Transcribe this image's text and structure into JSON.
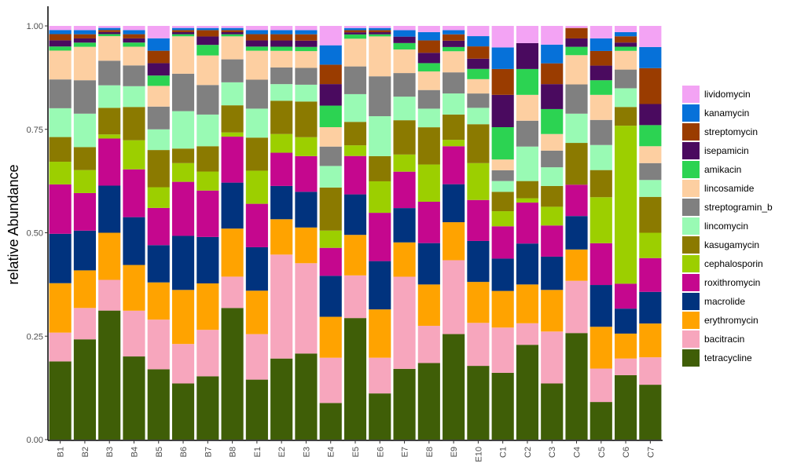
{
  "chart_data": {
    "type": "bar",
    "stacked": true,
    "ylabel": "relative Abundance",
    "xlabel": "",
    "ylim": [
      0,
      1
    ],
    "yticks": [
      "0.00",
      "0.25",
      "0.50",
      "0.75",
      "1.00"
    ],
    "legend_position": "right",
    "categories": [
      "B1",
      "B2",
      "B3",
      "B4",
      "B5",
      "B6",
      "B7",
      "B8",
      "E1",
      "E2",
      "E3",
      "E4",
      "E5",
      "E6",
      "E7",
      "E8",
      "E9",
      "E10",
      "C1",
      "C2",
      "C3",
      "C4",
      "C5",
      "C6",
      "C7"
    ],
    "series": [
      {
        "name": "tetracycline",
        "color": "#3f5e07",
        "values": [
          0.19,
          0.24,
          0.315,
          0.2,
          0.17,
          0.135,
          0.15,
          0.315,
          0.145,
          0.195,
          0.205,
          0.085,
          0.285,
          0.11,
          0.165,
          0.185,
          0.25,
          0.18,
          0.155,
          0.22,
          0.135,
          0.255,
          0.09,
          0.155,
          0.13
        ]
      },
      {
        "name": "bacitracin",
        "color": "#f7a6bd",
        "values": [
          0.07,
          0.075,
          0.075,
          0.11,
          0.12,
          0.095,
          0.11,
          0.075,
          0.11,
          0.25,
          0.215,
          0.105,
          0.1,
          0.085,
          0.215,
          0.09,
          0.175,
          0.105,
          0.105,
          0.05,
          0.125,
          0.125,
          0.08,
          0.04,
          0.065
        ]
      },
      {
        "name": "erythromycin",
        "color": "#ffa300",
        "values": [
          0.12,
          0.09,
          0.115,
          0.11,
          0.09,
          0.13,
          0.11,
          0.115,
          0.105,
          0.085,
          0.085,
          0.095,
          0.095,
          0.115,
          0.08,
          0.1,
          0.09,
          0.1,
          0.085,
          0.09,
          0.1,
          0.075,
          0.1,
          0.06,
          0.08
        ]
      },
      {
        "name": "macrolide",
        "color": "#01337e",
        "values": [
          0.12,
          0.095,
          0.115,
          0.115,
          0.09,
          0.13,
          0.11,
          0.11,
          0.105,
          0.08,
          0.085,
          0.095,
          0.095,
          0.115,
          0.08,
          0.1,
          0.09,
          0.1,
          0.075,
          0.095,
          0.08,
          0.08,
          0.1,
          0.06,
          0.075
        ]
      },
      {
        "name": "roxithromycin",
        "color": "#c5078e",
        "values": [
          0.12,
          0.09,
          0.115,
          0.115,
          0.09,
          0.13,
          0.11,
          0.11,
          0.105,
          0.08,
          0.085,
          0.065,
          0.09,
          0.115,
          0.085,
          0.1,
          0.09,
          0.1,
          0.075,
          0.095,
          0.075,
          0.075,
          0.1,
          0.06,
          0.08
        ]
      },
      {
        "name": "cephalosporin",
        "color": "#9ccf00",
        "values": [
          0.055,
          0.055,
          0.01,
          0.07,
          0.05,
          0.045,
          0.045,
          0.01,
          0.08,
          0.045,
          0.045,
          0.04,
          0.025,
          0.075,
          0.04,
          0.09,
          0.015,
          0.09,
          0.035,
          0.01,
          0.045,
          0.0,
          0.11,
          0.38,
          0.06
        ]
      },
      {
        "name": "kasugamycin",
        "color": "#8b7a00",
        "values": [
          0.06,
          0.055,
          0.065,
          0.08,
          0.09,
          0.035,
          0.06,
          0.065,
          0.08,
          0.08,
          0.085,
          0.1,
          0.055,
          0.06,
          0.08,
          0.09,
          0.06,
          0.095,
          0.045,
          0.04,
          0.05,
          0.1,
          0.065,
          0.045,
          0.085
        ]
      },
      {
        "name": "lincomycin",
        "color": "#99fab4",
        "values": [
          0.07,
          0.08,
          0.055,
          0.05,
          0.05,
          0.09,
          0.075,
          0.055,
          0.07,
          0.04,
          0.04,
          0.05,
          0.065,
          0.095,
          0.055,
          0.045,
          0.05,
          0.04,
          0.025,
          0.08,
          0.045,
          0.07,
          0.06,
          0.045,
          0.04
        ]
      },
      {
        "name": "streptogramin_b",
        "color": "#808080",
        "values": [
          0.07,
          0.08,
          0.06,
          0.05,
          0.055,
          0.09,
          0.07,
          0.055,
          0.07,
          0.04,
          0.04,
          0.045,
          0.065,
          0.095,
          0.055,
          0.045,
          0.05,
          0.035,
          0.025,
          0.06,
          0.04,
          0.07,
          0.06,
          0.045,
          0.04
        ]
      },
      {
        "name": "lincosamide",
        "color": "#fdcfa1",
        "values": [
          0.07,
          0.08,
          0.06,
          0.045,
          0.05,
          0.09,
          0.07,
          0.055,
          0.07,
          0.04,
          0.04,
          0.045,
          0.065,
          0.095,
          0.055,
          0.045,
          0.05,
          0.035,
          0.025,
          0.06,
          0.04,
          0.07,
          0.06,
          0.045,
          0.04
        ]
      },
      {
        "name": "amikacin",
        "color": "#2cd352",
        "values": [
          0.01,
          0.01,
          0.005,
          0.01,
          0.025,
          0.005,
          0.025,
          0.005,
          0.01,
          0.01,
          0.01,
          0.05,
          0.01,
          0.005,
          0.015,
          0.02,
          0.01,
          0.025,
          0.075,
          0.06,
          0.06,
          0.02,
          0.035,
          0.01,
          0.05
        ]
      },
      {
        "name": "isepamicin",
        "color": "#4a0a5f",
        "values": [
          0.015,
          0.01,
          0.005,
          0.01,
          0.03,
          0.005,
          0.02,
          0.005,
          0.015,
          0.015,
          0.015,
          0.05,
          0.005,
          0.005,
          0.015,
          0.025,
          0.015,
          0.025,
          0.075,
          0.06,
          0.06,
          0.02,
          0.035,
          0.01,
          0.05
        ]
      },
      {
        "name": "streptomycin",
        "color": "#9a3c00",
        "values": [
          0.015,
          0.01,
          0.005,
          0.01,
          0.03,
          0.005,
          0.015,
          0.005,
          0.015,
          0.015,
          0.015,
          0.045,
          0.005,
          0.005,
          0.0,
          0.03,
          0.015,
          0.03,
          0.06,
          0.0,
          0.05,
          0.025,
          0.035,
          0.015,
          0.085
        ]
      },
      {
        "name": "kanamycin",
        "color": "#0671d9",
        "values": [
          0.01,
          0.01,
          0.005,
          0.01,
          0.03,
          0.005,
          0.005,
          0.005,
          0.01,
          0.01,
          0.01,
          0.045,
          0.005,
          0.005,
          0.015,
          0.02,
          0.01,
          0.025,
          0.05,
          0.0,
          0.045,
          0.0,
          0.03,
          0.01,
          0.05
        ]
      },
      {
        "name": "lividomycin",
        "color": "#f3a3f4",
        "values": [
          0.01,
          0.01,
          0.005,
          0.01,
          0.03,
          0.005,
          0.005,
          0.005,
          0.01,
          0.01,
          0.01,
          0.045,
          0.005,
          0.005,
          0.01,
          0.015,
          0.01,
          0.025,
          0.05,
          0.04,
          0.045,
          0.005,
          0.03,
          0.015,
          0.05
        ]
      }
    ]
  }
}
